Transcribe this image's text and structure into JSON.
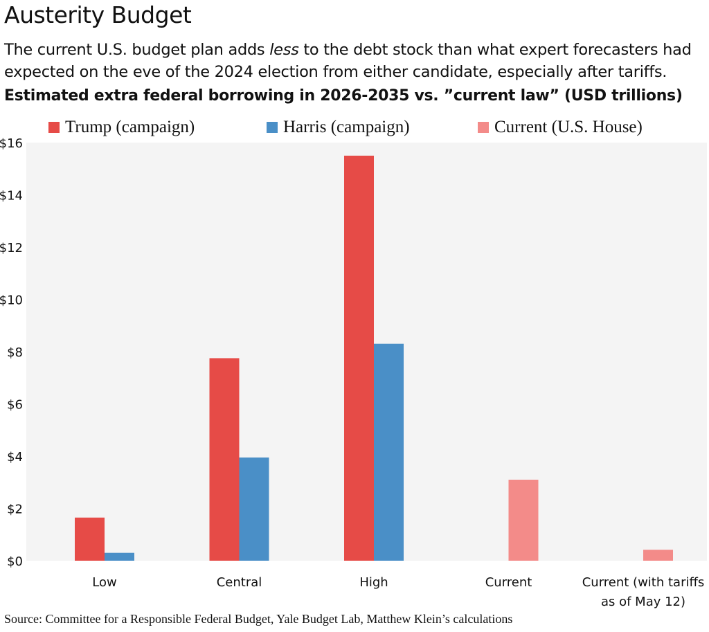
{
  "title": "Austerity Budget",
  "subtitle": {
    "part1": "The current U.S. budget plan adds ",
    "emphasis": "less",
    "part2": " to the debt stock than what expert forecasters had expected on the eve of the 2024 election from either candidate, especially after tariffs."
  },
  "source": "Source: Committee for a Responsible Federal Budget, Yale Budget Lab, Matthew Klein’s calculations",
  "chart_data": {
    "type": "bar",
    "title": "Estimated extra federal borrowing in 2026-2035 vs. ”current law” (USD trillions)",
    "xlabel": "",
    "ylabel": "",
    "categories": [
      "Low",
      "Central",
      "High",
      "Current",
      "Current (with tariffs as of May 12)"
    ],
    "series": [
      {
        "name": "Trump (campaign)",
        "color": "#e64b47",
        "values": [
          1.65,
          7.75,
          15.5,
          null,
          null
        ]
      },
      {
        "name": "Harris (campaign)",
        "color": "#4a8fc7",
        "values": [
          0.3,
          3.95,
          8.3,
          null,
          null
        ]
      },
      {
        "name": "Current (U.S. House)",
        "color": "#f38b89",
        "values": [
          null,
          null,
          null,
          3.1,
          0.42
        ]
      }
    ],
    "ylim": [
      0,
      16
    ],
    "yticks": [
      0,
      2,
      4,
      6,
      8,
      10,
      12,
      14,
      16
    ],
    "ytick_labels": [
      "$0",
      "$2",
      "$4",
      "$6",
      "$8",
      "$10",
      "$12",
      "$14",
      "$16"
    ],
    "category_label_lines": [
      [
        "Low"
      ],
      [
        "Central"
      ],
      [
        "High"
      ],
      [
        "Current"
      ],
      [
        "Current (with tariffs",
        "as of May 12)"
      ]
    ],
    "grid": false,
    "legend": "top",
    "background": "#f4f4f4"
  }
}
